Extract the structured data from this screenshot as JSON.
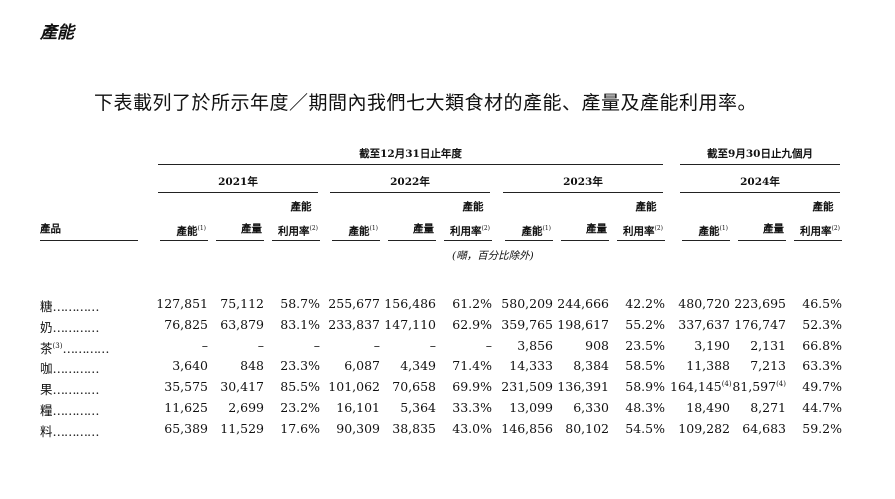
{
  "heading": "產能",
  "intro": "下表載列了於所示年度／期間內我們七大類食材的產能、產量及產能利用率。",
  "table": {
    "group_headers": {
      "fiscal": "截至12月31日止年度",
      "ninemonths": "截至9月30日止九個月"
    },
    "years": [
      "2021年",
      "2022年",
      "2023年",
      "2024年"
    ],
    "product_header": "產品",
    "col_headers": {
      "capacity": "產能",
      "capacity_note": "(1)",
      "output": "產量",
      "util_line1": "產能",
      "util_line2": "利用率",
      "util_note": "(2)"
    },
    "unit_note": "(噸，百分比除外)",
    "dots": "…………",
    "rows": [
      {
        "name": "糖",
        "note": "",
        "values": [
          "127,851",
          "75,112",
          "58.7%",
          "255,677",
          "156,486",
          "61.2%",
          "580,209",
          "244,666",
          "42.2%",
          "480,720",
          "223,695",
          "46.5%"
        ],
        "notes": [
          "",
          "",
          "",
          "",
          "",
          "",
          "",
          "",
          "",
          "",
          "",
          ""
        ]
      },
      {
        "name": "奶",
        "note": "",
        "values": [
          "76,825",
          "63,879",
          "83.1%",
          "233,837",
          "147,110",
          "62.9%",
          "359,765",
          "198,617",
          "55.2%",
          "337,637",
          "176,747",
          "52.3%"
        ],
        "notes": [
          "",
          "",
          "",
          "",
          "",
          "",
          "",
          "",
          "",
          "",
          "",
          ""
        ]
      },
      {
        "name": "茶",
        "note": "(3)",
        "values": [
          "–",
          "–",
          "–",
          "–",
          "–",
          "–",
          "3,856",
          "908",
          "23.5%",
          "3,190",
          "2,131",
          "66.8%"
        ],
        "notes": [
          "",
          "",
          "",
          "",
          "",
          "",
          "",
          "",
          "",
          "",
          "",
          ""
        ]
      },
      {
        "name": "咖",
        "note": "",
        "values": [
          "3,640",
          "848",
          "23.3%",
          "6,087",
          "4,349",
          "71.4%",
          "14,333",
          "8,384",
          "58.5%",
          "11,388",
          "7,213",
          "63.3%"
        ],
        "notes": [
          "",
          "",
          "",
          "",
          "",
          "",
          "",
          "",
          "",
          "",
          "",
          ""
        ]
      },
      {
        "name": "果",
        "note": "",
        "values": [
          "35,575",
          "30,417",
          "85.5%",
          "101,062",
          "70,658",
          "69.9%",
          "231,509",
          "136,391",
          "58.9%",
          "164,145",
          "81,597",
          "49.7%"
        ],
        "notes": [
          "",
          "",
          "",
          "",
          "",
          "",
          "",
          "",
          "",
          "(4)",
          "(4)",
          ""
        ]
      },
      {
        "name": "糧",
        "note": "",
        "values": [
          "11,625",
          "2,699",
          "23.2%",
          "16,101",
          "5,364",
          "33.3%",
          "13,099",
          "6,330",
          "48.3%",
          "18,490",
          "8,271",
          "44.7%"
        ],
        "notes": [
          "",
          "",
          "",
          "",
          "",
          "",
          "",
          "",
          "",
          "",
          "",
          ""
        ]
      },
      {
        "name": "料",
        "note": "",
        "values": [
          "65,389",
          "11,529",
          "17.6%",
          "90,309",
          "38,835",
          "43.0%",
          "146,856",
          "80,102",
          "54.5%",
          "109,282",
          "64,683",
          "59.2%"
        ],
        "notes": [
          "",
          "",
          "",
          "",
          "",
          "",
          "",
          "",
          "",
          "",
          "",
          ""
        ]
      }
    ]
  }
}
